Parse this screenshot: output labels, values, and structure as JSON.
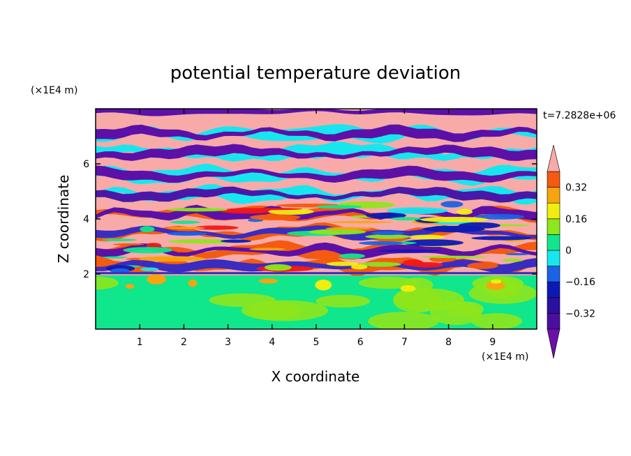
{
  "chart_data": {
    "type": "heatmap",
    "title": "potential temperature deviation",
    "xlabel": "X coordinate",
    "ylabel": "Z coordinate",
    "x_unit": "(×1E4 m)",
    "y_unit": "(×1E4 m)",
    "time_label": "t=7.2828e+06",
    "xlim": [
      0,
      10
    ],
    "ylim": [
      0,
      8
    ],
    "x_ticks": [
      1,
      2,
      3,
      4,
      5,
      6,
      7,
      8,
      9
    ],
    "y_ticks": [
      2,
      4,
      6
    ],
    "colorbar": {
      "levels": [
        -0.4,
        -0.32,
        -0.24,
        -0.16,
        -0.08,
        0,
        0.08,
        0.16,
        0.24,
        0.32,
        0.4
      ],
      "tick_labels": [
        "0.32",
        "0.16",
        "0",
        "−0.16",
        "−0.32"
      ],
      "tick_values": [
        0.32,
        0.16,
        0,
        -0.16,
        -0.32
      ],
      "colors": [
        "#4b0e9e",
        "#2a0fa0",
        "#0c1ab4",
        "#1a62e6",
        "#18e6ee",
        "#10e68c",
        "#8ee61c",
        "#f0ee10",
        "#f7a410",
        "#f45a10",
        "#f01818"
      ],
      "over_color": "#f7aaa8",
      "under_color": "#6a10a8",
      "extend": "both"
    },
    "layers": {
      "lower_region_top": 1.95,
      "band_centers": [
        7.1,
        6.4,
        5.6,
        4.9,
        4.2,
        3.5,
        2.85,
        2.3
      ],
      "band_colors": [
        "#5c10a8",
        "#5c10a8",
        "#5c10a8",
        "#4a18a8",
        "#5c10a8",
        "#3a2cc0",
        "#5c10a8",
        "#3a2cc0"
      ]
    }
  }
}
